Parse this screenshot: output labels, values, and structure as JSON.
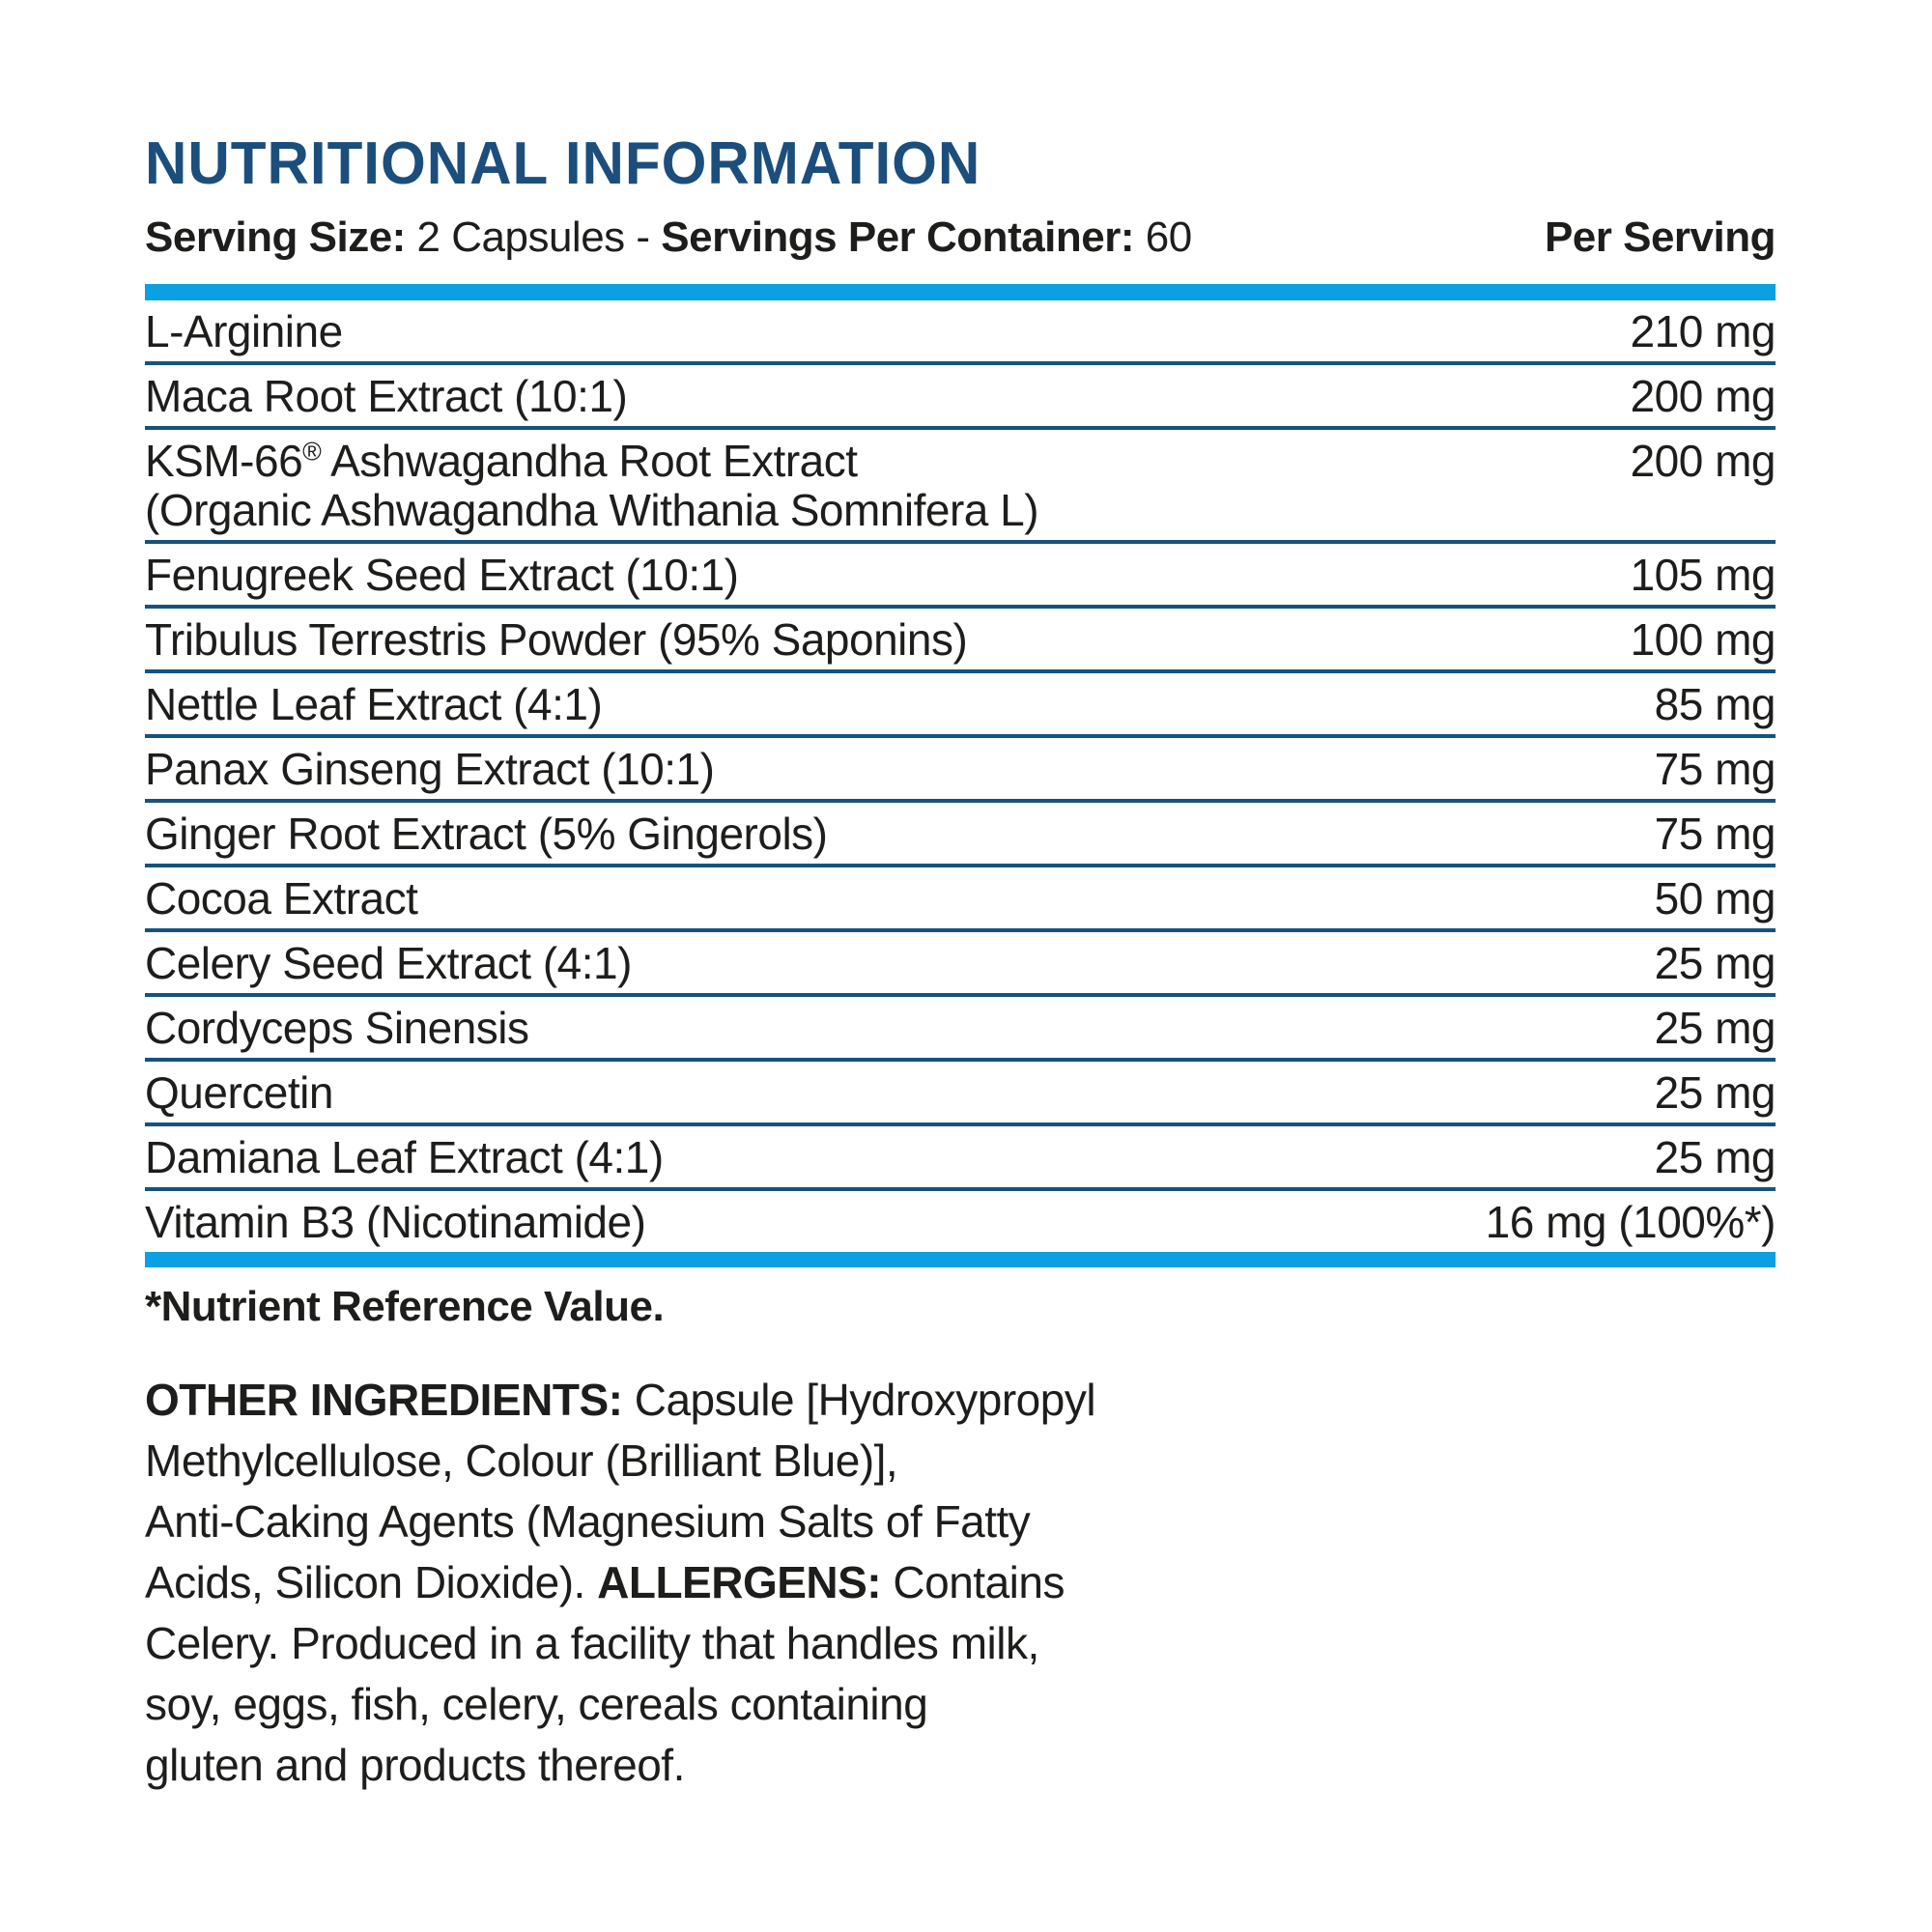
{
  "colors": {
    "accent_cyan": "#0aa0e1",
    "heading_navy": "#1b4e7c",
    "separator_navy": "#14537f",
    "text_black": "#1d1d1b"
  },
  "header": {
    "title": "NUTRITIONAL INFORMATION",
    "serving_line": [
      {
        "text": "Serving Size: ",
        "bold": true
      },
      {
        "text": "2 Capsules - ",
        "bold": false
      },
      {
        "text": "Servings Per Container: ",
        "bold": true
      },
      {
        "text": "60",
        "bold": false
      }
    ],
    "per_serving_label": "Per Serving"
  },
  "table": {
    "rows": [
      {
        "name": "L-Arginine",
        "value": "210 mg"
      },
      {
        "name": "Maca Root Extract (10:1)",
        "value": "200 mg"
      },
      {
        "name": "KSM-66® Ashwagandha Root Extract",
        "name_line2": "(Organic Ashwagandha Withania Somnifera L)",
        "value": "200 mg"
      },
      {
        "name": "Fenugreek Seed Extract (10:1)",
        "value": "105 mg"
      },
      {
        "name": "Tribulus Terrestris Powder (95% Saponins)",
        "value": "100 mg"
      },
      {
        "name": "Nettle Leaf Extract (4:1)",
        "value": "85 mg"
      },
      {
        "name": "Panax Ginseng Extract (10:1)",
        "value": "75 mg"
      },
      {
        "name": "Ginger Root Extract (5% Gingerols)",
        "value": "75 mg"
      },
      {
        "name": "Cocoa Extract",
        "value": "50 mg"
      },
      {
        "name": "Celery Seed Extract (4:1)",
        "value": "25 mg"
      },
      {
        "name": "Cordyceps Sinensis",
        "value": "25 mg"
      },
      {
        "name": "Quercetin",
        "value": "25 mg"
      },
      {
        "name": "Damiana Leaf Extract (4:1)",
        "value": "25 mg"
      },
      {
        "name": "Vitamin B3 (Nicotinamide)",
        "value": "16 mg (100%*)"
      }
    ]
  },
  "footnote": {
    "text": "*Nutrient Reference Value."
  },
  "other_ingredients": {
    "segments": [
      {
        "text": "OTHER INGREDIENTS:",
        "bold": true
      },
      {
        "text": " Capsule [Hydroxypropyl\nMethylcellulose, Colour (Brilliant Blue)],\nAnti-Caking Agents (Magnesium Salts of Fatty\nAcids, Silicon Dioxide). ",
        "bold": false
      },
      {
        "text": "ALLERGENS:",
        "bold": true
      },
      {
        "text": " Contains\nCelery. Produced in a facility that handles milk,\nsoy, eggs, fish, celery, cereals containing\ngluten and products thereof.",
        "bold": false
      }
    ]
  }
}
